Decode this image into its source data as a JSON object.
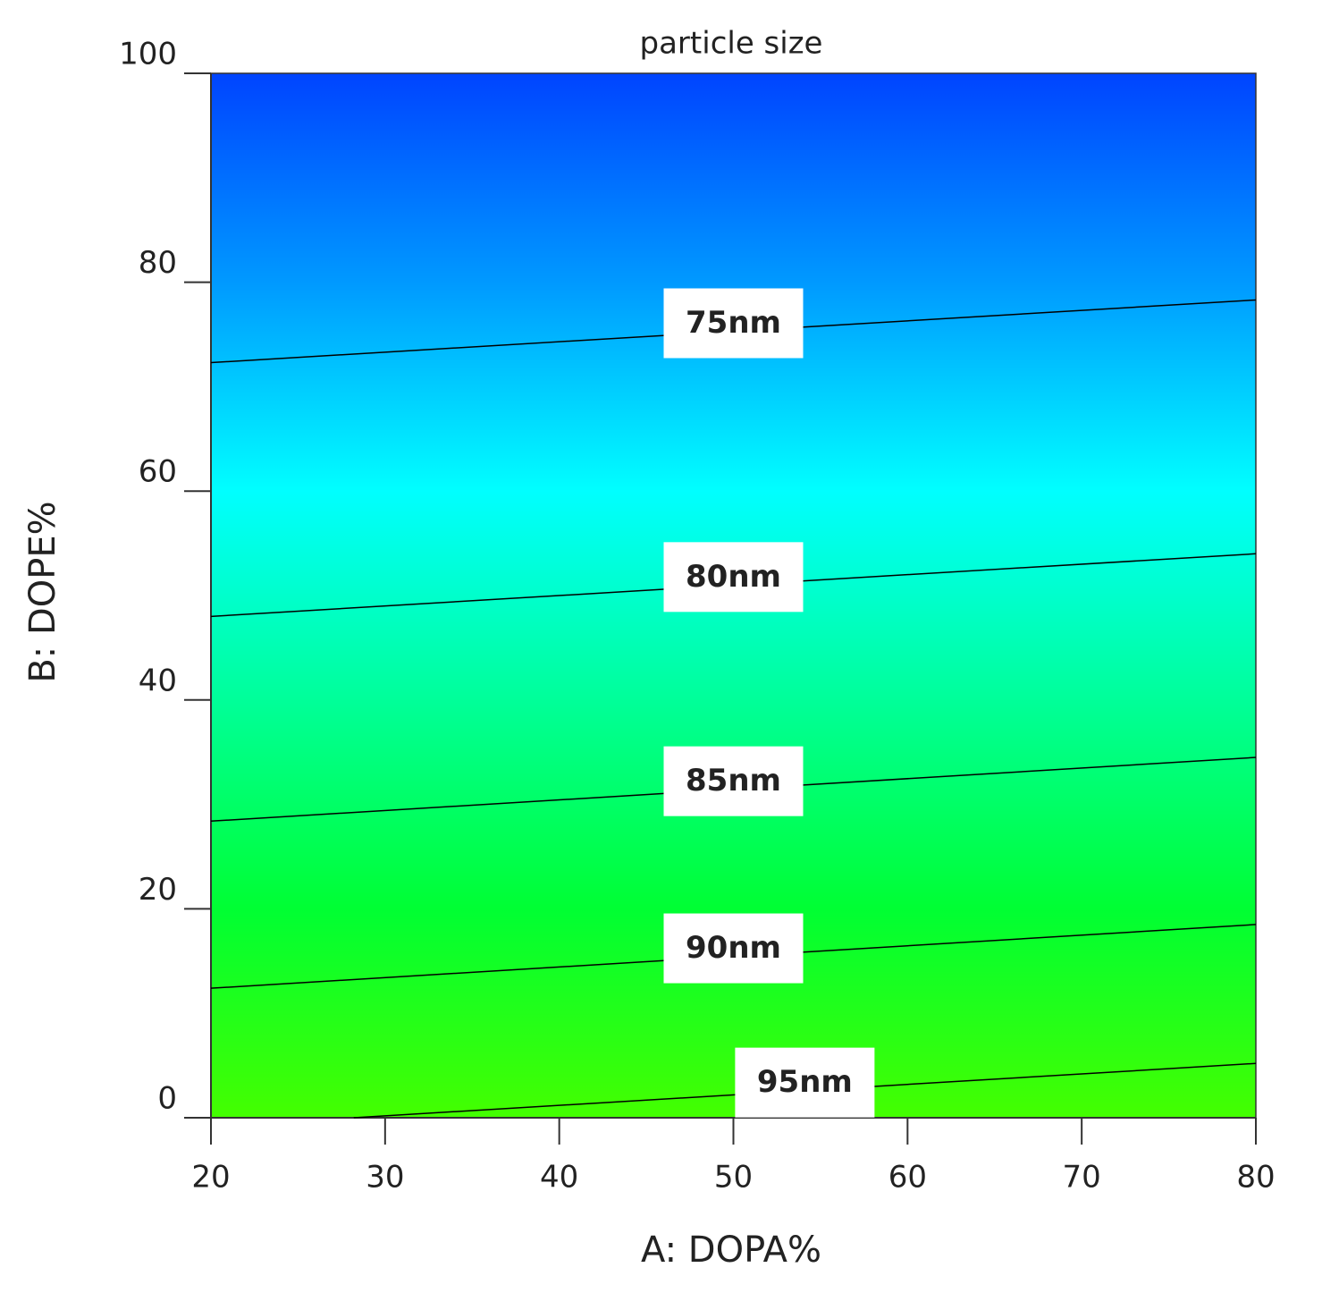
{
  "chart_data": {
    "type": "contour",
    "title": "particle size",
    "xlabel": "A: DOPA%",
    "ylabel": "B: DOPE%",
    "xlim": [
      20,
      80
    ],
    "xticks": [
      20,
      30,
      40,
      50,
      60,
      70,
      80
    ],
    "ylim": [
      0,
      100
    ],
    "yticks": [
      0,
      20,
      40,
      60,
      80,
      100
    ],
    "colors": [
      "#0044ff",
      "#0099ff",
      "#00ffff",
      "#00ff99",
      "#00ff33",
      "#44ff00"
    ],
    "line_color": "#000000",
    "contours": [
      {
        "level": 75,
        "label": "75nm",
        "x": [
          20,
          80
        ],
        "y": [
          72.3,
          78.3
        ]
      },
      {
        "level": 80,
        "label": "80nm",
        "x": [
          20,
          80
        ],
        "y": [
          48.0,
          54.0
        ]
      },
      {
        "level": 85,
        "label": "85nm",
        "x": [
          20,
          80
        ],
        "y": [
          28.4,
          34.5
        ]
      },
      {
        "level": 90,
        "label": "90nm",
        "x": [
          20,
          80
        ],
        "y": [
          12.4,
          18.5
        ]
      },
      {
        "level": 95,
        "label": "95nm",
        "x": [
          28.2,
          80
        ],
        "y": [
          0,
          5.2
        ]
      }
    ]
  }
}
